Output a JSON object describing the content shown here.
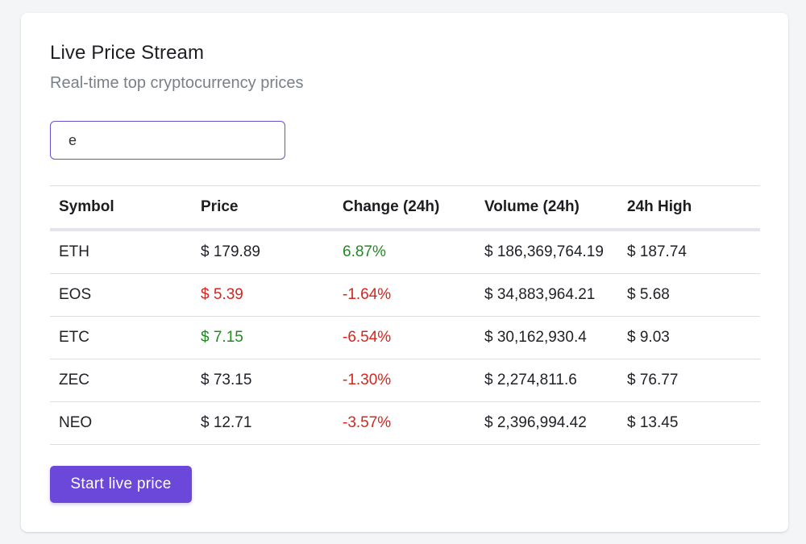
{
  "header": {
    "title": "Live Price Stream",
    "subtitle": "Real-time top cryptocurrency prices"
  },
  "search": {
    "value": "e",
    "placeholder": ""
  },
  "table": {
    "columns": [
      "Symbol",
      "Price",
      "Change (24h)",
      "Volume (24h)",
      "24h High"
    ],
    "rows": [
      {
        "symbol": "ETH",
        "price": "$ 179.89",
        "price_trend": "neutral",
        "change": "6.87%",
        "change_trend": "up",
        "volume": "$ 186,369,764.19",
        "high": "$ 187.74"
      },
      {
        "symbol": "EOS",
        "price": "$ 5.39",
        "price_trend": "down",
        "change": "-1.64%",
        "change_trend": "down",
        "volume": "$ 34,883,964.21",
        "high": "$ 5.68"
      },
      {
        "symbol": "ETC",
        "price": "$ 7.15",
        "price_trend": "up",
        "change": "-6.54%",
        "change_trend": "down",
        "volume": "$ 30,162,930.4",
        "high": "$ 9.03"
      },
      {
        "symbol": "ZEC",
        "price": "$ 73.15",
        "price_trend": "neutral",
        "change": "-1.30%",
        "change_trend": "down",
        "volume": "$ 2,274,811.6",
        "high": "$ 76.77"
      },
      {
        "symbol": "NEO",
        "price": "$ 12.71",
        "price_trend": "neutral",
        "change": "-3.57%",
        "change_trend": "down",
        "volume": "$ 2,396,994.42",
        "high": "$ 13.45"
      }
    ]
  },
  "actions": {
    "start_label": "Start live price"
  },
  "colors": {
    "accent": "#6b48d9",
    "positive": "#1f8a1f",
    "negative": "#d6261e",
    "muted": "#7a808a"
  }
}
